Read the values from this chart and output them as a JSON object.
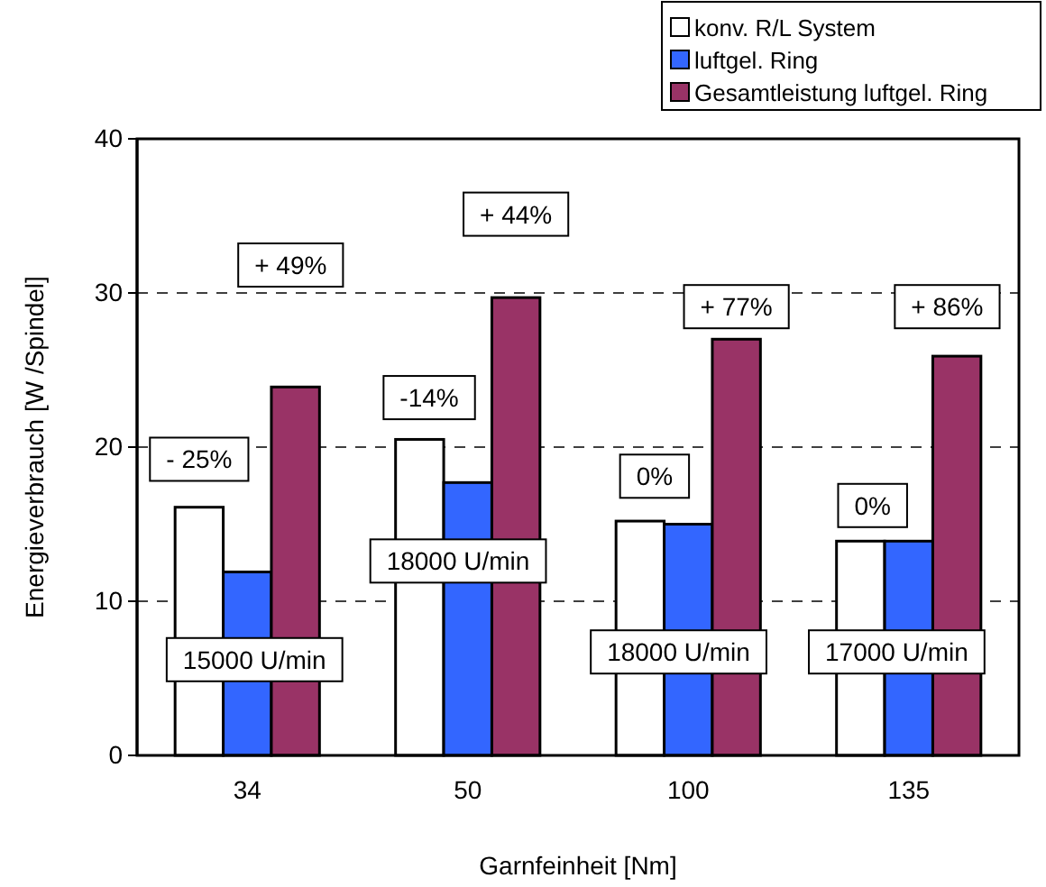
{
  "chart_data": {
    "type": "bar",
    "xlabel": "Garnfeinheit [Nm]",
    "ylabel": "Energieverbrauch [W /Spindel]",
    "categories": [
      "34",
      "50",
      "100",
      "135"
    ],
    "series": [
      {
        "name": "konv. R/L System",
        "color": "#ffffff",
        "values": [
          16.1,
          20.5,
          15.2,
          13.9
        ]
      },
      {
        "name": "luftgel. Ring",
        "color": "#3366ff",
        "values": [
          11.9,
          17.7,
          15.0,
          13.9
        ]
      },
      {
        "name": "Gesamtleistung luftgel. Ring",
        "color": "#993366",
        "values": [
          23.9,
          29.7,
          27.0,
          25.9
        ]
      }
    ],
    "ylim": [
      0,
      40
    ],
    "yticks": [
      0,
      10,
      20,
      30,
      40
    ],
    "grid": "y",
    "legend": "top right",
    "annotations": [
      "- 25%",
      "+ 49%",
      "15000 U/min",
      "-14%",
      "+ 44%",
      "18000 U/min",
      "0%",
      "+ 77%",
      "18000 U/min",
      "0%",
      "+ 86%",
      "17000 U/min"
    ]
  }
}
